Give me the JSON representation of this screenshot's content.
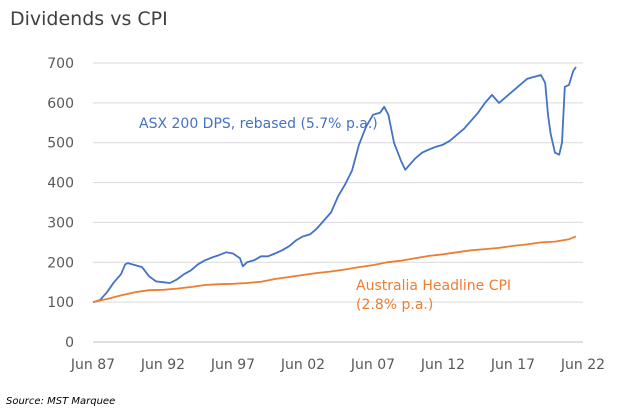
{
  "title": "Dividends vs CPI",
  "source": "Source: MST Marquee",
  "chart_data": {
    "type": "line",
    "title": "Dividends vs CPI",
    "xlabel": "",
    "ylabel": "",
    "ylim": [
      0,
      700
    ],
    "y_ticks": [
      0,
      100,
      200,
      300,
      400,
      500,
      600,
      700
    ],
    "x_ticks": [
      {
        "label": "Jun 87",
        "x": 1987.5
      },
      {
        "label": "Jun 92",
        "x": 1992.5
      },
      {
        "label": "Jun 97",
        "x": 1997.5
      },
      {
        "label": "Jun 02",
        "x": 2002.5
      },
      {
        "label": "Jun 07",
        "x": 2007.5
      },
      {
        "label": "Jun 12",
        "x": 2012.5
      },
      {
        "label": "Jun 17",
        "x": 2017.5
      },
      {
        "label": "Jun 22",
        "x": 2022.5
      }
    ],
    "xlim": [
      1987.5,
      2022.5
    ],
    "grid": "horizontal",
    "series": [
      {
        "name": "ASX 200 DPS, rebased (5.7% p.a.)",
        "color": "#4472C4",
        "points": [
          [
            1987.5,
            100
          ],
          [
            1988.0,
            105
          ],
          [
            1988.5,
            125
          ],
          [
            1989.0,
            150
          ],
          [
            1989.5,
            170
          ],
          [
            1989.8,
            195
          ],
          [
            1990.0,
            198
          ],
          [
            1990.5,
            193
          ],
          [
            1991.0,
            188
          ],
          [
            1991.5,
            165
          ],
          [
            1992.0,
            152
          ],
          [
            1992.5,
            150
          ],
          [
            1993.0,
            148
          ],
          [
            1993.5,
            157
          ],
          [
            1994.0,
            170
          ],
          [
            1994.5,
            180
          ],
          [
            1995.0,
            195
          ],
          [
            1995.5,
            205
          ],
          [
            1996.0,
            212
          ],
          [
            1996.5,
            218
          ],
          [
            1997.0,
            225
          ],
          [
            1997.5,
            222
          ],
          [
            1998.0,
            210
          ],
          [
            1998.2,
            190
          ],
          [
            1998.5,
            200
          ],
          [
            1999.0,
            205
          ],
          [
            1999.5,
            215
          ],
          [
            2000.0,
            215
          ],
          [
            2000.5,
            222
          ],
          [
            2001.0,
            230
          ],
          [
            2001.5,
            240
          ],
          [
            2002.0,
            255
          ],
          [
            2002.5,
            265
          ],
          [
            2003.0,
            270
          ],
          [
            2003.5,
            285
          ],
          [
            2004.0,
            305
          ],
          [
            2004.5,
            325
          ],
          [
            2005.0,
            365
          ],
          [
            2005.5,
            395
          ],
          [
            2006.0,
            430
          ],
          [
            2006.5,
            495
          ],
          [
            2007.0,
            540
          ],
          [
            2007.5,
            570
          ],
          [
            2008.0,
            575
          ],
          [
            2008.3,
            590
          ],
          [
            2008.6,
            570
          ],
          [
            2009.0,
            500
          ],
          [
            2009.5,
            455
          ],
          [
            2009.8,
            432
          ],
          [
            2010.0,
            440
          ],
          [
            2010.5,
            460
          ],
          [
            2011.0,
            475
          ],
          [
            2011.5,
            483
          ],
          [
            2012.0,
            490
          ],
          [
            2012.5,
            495
          ],
          [
            2013.0,
            505
          ],
          [
            2013.5,
            520
          ],
          [
            2014.0,
            535
          ],
          [
            2014.5,
            555
          ],
          [
            2015.0,
            575
          ],
          [
            2015.5,
            600
          ],
          [
            2016.0,
            620
          ],
          [
            2016.5,
            600
          ],
          [
            2017.0,
            615
          ],
          [
            2017.5,
            630
          ],
          [
            2018.0,
            645
          ],
          [
            2018.5,
            660
          ],
          [
            2019.0,
            665
          ],
          [
            2019.5,
            670
          ],
          [
            2019.8,
            650
          ],
          [
            2020.0,
            570
          ],
          [
            2020.2,
            520
          ],
          [
            2020.5,
            475
          ],
          [
            2020.8,
            470
          ],
          [
            2021.0,
            500
          ],
          [
            2021.2,
            640
          ],
          [
            2021.5,
            645
          ],
          [
            2021.8,
            680
          ],
          [
            2022.0,
            690
          ]
        ]
      },
      {
        "name": "Australia Headline CPI (2.8% p.a.)",
        "color": "#ED7D31",
        "points": [
          [
            1987.5,
            100
          ],
          [
            1988.5,
            108
          ],
          [
            1989.5,
            117
          ],
          [
            1990.5,
            125
          ],
          [
            1991.5,
            130
          ],
          [
            1992.5,
            131
          ],
          [
            1993.5,
            134
          ],
          [
            1994.5,
            138
          ],
          [
            1995.5,
            143
          ],
          [
            1996.5,
            145
          ],
          [
            1997.5,
            146
          ],
          [
            1998.5,
            148
          ],
          [
            1999.5,
            151
          ],
          [
            2000.5,
            158
          ],
          [
            2001.5,
            163
          ],
          [
            2002.5,
            168
          ],
          [
            2003.5,
            173
          ],
          [
            2004.5,
            177
          ],
          [
            2005.5,
            182
          ],
          [
            2006.5,
            188
          ],
          [
            2007.5,
            193
          ],
          [
            2008.5,
            200
          ],
          [
            2009.5,
            204
          ],
          [
            2010.5,
            210
          ],
          [
            2011.5,
            216
          ],
          [
            2012.5,
            220
          ],
          [
            2013.5,
            225
          ],
          [
            2014.5,
            230
          ],
          [
            2015.5,
            233
          ],
          [
            2016.5,
            236
          ],
          [
            2017.5,
            241
          ],
          [
            2018.5,
            245
          ],
          [
            2019.5,
            250
          ],
          [
            2020.5,
            252
          ],
          [
            2021.5,
            258
          ],
          [
            2022.0,
            265
          ]
        ]
      }
    ],
    "annotations": [
      {
        "text": "ASX 200 DPS, rebased (5.7% p.a.)",
        "color": "#4472C4"
      },
      {
        "text": "Australia Headline CPI",
        "color": "#ED7D31"
      },
      {
        "text": "(2.8% p.a.)",
        "color": "#ED7D31"
      }
    ]
  }
}
